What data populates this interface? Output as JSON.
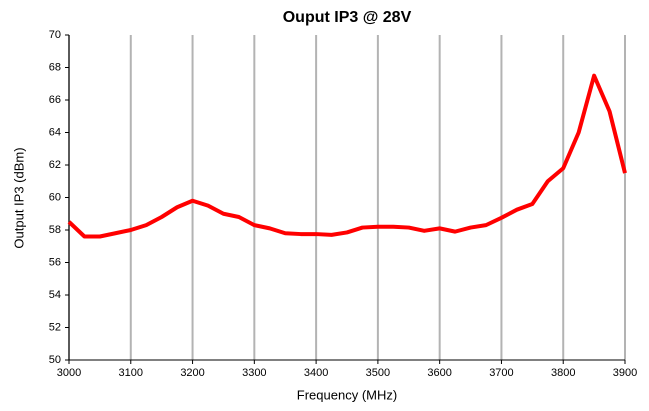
{
  "chart_data": {
    "type": "line",
    "title": "Ouput IP3 @ 28V",
    "x_label": "Frequency (MHz)",
    "y_label": "Output IP3 (dBm)",
    "x": [
      3000,
      3025,
      3050,
      3075,
      3100,
      3125,
      3150,
      3175,
      3200,
      3225,
      3250,
      3275,
      3300,
      3325,
      3350,
      3375,
      3400,
      3425,
      3450,
      3475,
      3500,
      3525,
      3550,
      3575,
      3600,
      3625,
      3650,
      3675,
      3700,
      3725,
      3750,
      3775,
      3800,
      3825,
      3850,
      3875,
      3900
    ],
    "series": [
      {
        "name": "Output IP3",
        "color": "#ff0000",
        "values": [
          58.5,
          57.6,
          57.6,
          57.8,
          58.0,
          58.3,
          58.8,
          59.4,
          59.8,
          59.5,
          59.0,
          58.8,
          58.3,
          58.1,
          57.8,
          57.75,
          57.75,
          57.7,
          57.85,
          58.15,
          58.2,
          58.2,
          58.15,
          57.95,
          58.1,
          57.9,
          58.15,
          58.3,
          58.75,
          59.25,
          59.6,
          61.0,
          61.8,
          64.0,
          67.5,
          65.3,
          61.5
        ]
      }
    ],
    "xlim": [
      3000,
      3900
    ],
    "xticks": [
      3000,
      3100,
      3200,
      3300,
      3400,
      3500,
      3600,
      3700,
      3800,
      3900
    ],
    "ylim": [
      50,
      70
    ],
    "yticks": [
      50,
      52,
      54,
      56,
      58,
      60,
      62,
      64,
      66,
      68,
      70
    ],
    "grid": "x"
  }
}
